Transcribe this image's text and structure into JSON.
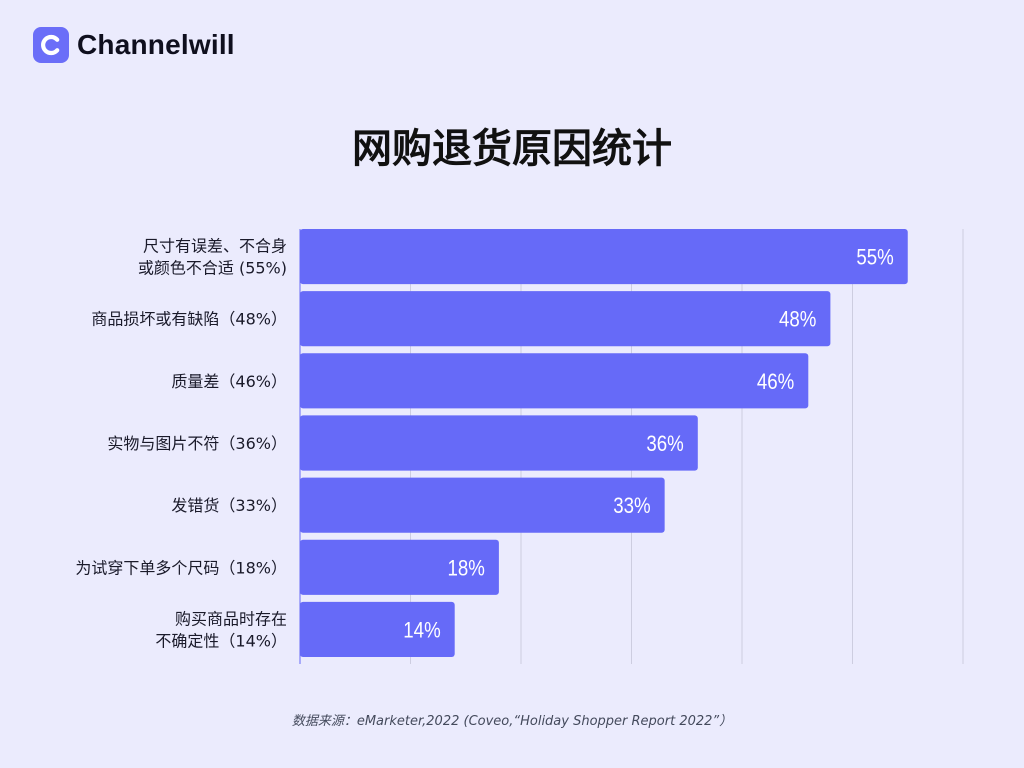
{
  "brand": {
    "name": "Channelwill",
    "logo_icon": "channelwill-c-logo-icon",
    "color": "#6b6ef8"
  },
  "chart_data": {
    "type": "bar",
    "orientation": "horizontal",
    "title": "网购退货原因统计",
    "xlabel": "",
    "ylabel": "",
    "xlim": [
      0,
      60
    ],
    "grid": true,
    "bar_color": "#666af8",
    "categories": [
      [
        "尺寸有误差、不合身",
        "或颜色不合适 (55%)"
      ],
      [
        "商品损坏或有缺陷（48%）"
      ],
      [
        "质量差（46%）"
      ],
      [
        "实物与图片不符（36%）"
      ],
      [
        "发错货（33%）"
      ],
      [
        "为试穿下单多个尺码（18%）"
      ],
      [
        "购买商品时存在",
        "不确定性（14%）"
      ]
    ],
    "values": [
      55,
      48,
      46,
      36,
      33,
      18,
      14
    ],
    "data_labels": [
      "55%",
      "48%",
      "46%",
      "36%",
      "33%",
      "18%",
      "14%"
    ]
  },
  "source": "数据来源：eMarketer,2022 (Coveo,“Holiday Shopper Report 2022”）"
}
